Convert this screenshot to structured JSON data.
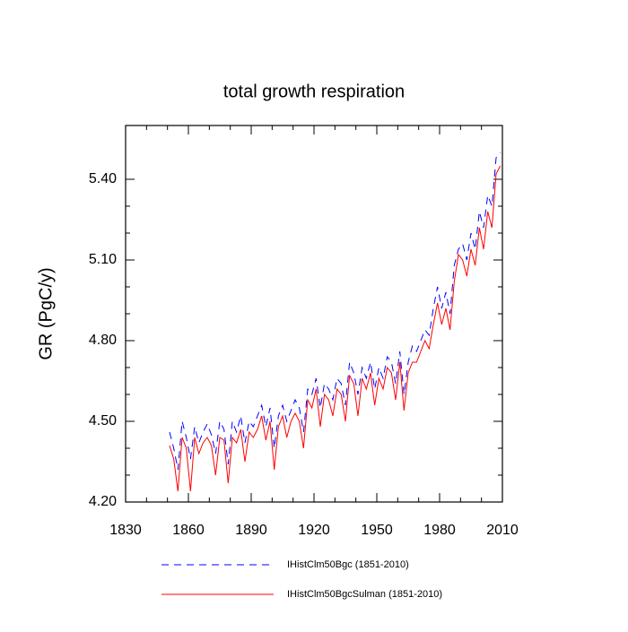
{
  "chart_data": {
    "type": "line",
    "title": "total growth respiration",
    "ylabel": "GR  (PgC/y)",
    "x": [
      1851,
      1853,
      1855,
      1857,
      1859,
      1861,
      1863,
      1865,
      1867,
      1869,
      1871,
      1873,
      1875,
      1877,
      1879,
      1881,
      1883,
      1885,
      1887,
      1889,
      1891,
      1893,
      1895,
      1897,
      1899,
      1901,
      1903,
      1905,
      1907,
      1909,
      1911,
      1913,
      1915,
      1917,
      1919,
      1921,
      1923,
      1925,
      1927,
      1929,
      1931,
      1933,
      1935,
      1937,
      1939,
      1941,
      1943,
      1945,
      1947,
      1949,
      1951,
      1953,
      1955,
      1957,
      1959,
      1961,
      1963,
      1965,
      1967,
      1969,
      1971,
      1973,
      1975,
      1977,
      1979,
      1981,
      1983,
      1985,
      1987,
      1989,
      1991,
      1993,
      1995,
      1997,
      1999,
      2001,
      2003,
      2005,
      2007,
      2009
    ],
    "series": [
      {
        "name": "IHistClm50Bgc (1851-2010)",
        "color": "#0000ff",
        "line_style": "dashed",
        "values": [
          4.46,
          4.4,
          4.32,
          4.5,
          4.44,
          4.36,
          4.48,
          4.42,
          4.46,
          4.49,
          4.45,
          4.38,
          4.5,
          4.47,
          4.34,
          4.5,
          4.46,
          4.52,
          4.42,
          4.5,
          4.48,
          4.52,
          4.56,
          4.48,
          4.55,
          4.4,
          4.52,
          4.56,
          4.5,
          4.54,
          4.58,
          4.55,
          4.46,
          4.62,
          4.6,
          4.66,
          4.55,
          4.64,
          4.62,
          4.58,
          4.66,
          4.64,
          4.56,
          4.72,
          4.68,
          4.6,
          4.7,
          4.66,
          4.72,
          4.62,
          4.7,
          4.66,
          4.74,
          4.72,
          4.64,
          4.76,
          4.6,
          4.72,
          4.78,
          4.76,
          4.8,
          4.84,
          4.82,
          4.92,
          5.0,
          4.92,
          4.98,
          4.9,
          5.08,
          5.14,
          5.16,
          5.1,
          5.2,
          5.14,
          5.28,
          5.22,
          5.34,
          5.3,
          5.48,
          5.5
        ]
      },
      {
        "name": "IHistClm50BgcSulman (1851-2010)",
        "color": "#ff0000",
        "line_style": "solid",
        "values": [
          4.41,
          4.36,
          4.24,
          4.44,
          4.4,
          4.24,
          4.44,
          4.38,
          4.42,
          4.44,
          4.41,
          4.3,
          4.44,
          4.43,
          4.27,
          4.44,
          4.42,
          4.47,
          4.35,
          4.46,
          4.44,
          4.47,
          4.52,
          4.43,
          4.5,
          4.32,
          4.48,
          4.52,
          4.44,
          4.5,
          4.53,
          4.5,
          4.4,
          4.58,
          4.55,
          4.62,
          4.48,
          4.6,
          4.58,
          4.52,
          4.62,
          4.6,
          4.5,
          4.67,
          4.64,
          4.52,
          4.66,
          4.62,
          4.68,
          4.56,
          4.66,
          4.62,
          4.7,
          4.68,
          4.58,
          4.72,
          4.54,
          4.68,
          4.72,
          4.72,
          4.76,
          4.8,
          4.77,
          4.86,
          4.94,
          4.86,
          4.92,
          4.84,
          5.02,
          5.12,
          5.1,
          5.04,
          5.14,
          5.08,
          5.22,
          5.14,
          5.28,
          5.22,
          5.42,
          5.45
        ]
      }
    ],
    "xlim": [
      1830,
      2010
    ],
    "xticks": [
      1830,
      1860,
      1890,
      1920,
      1950,
      1980,
      2010
    ],
    "ylim": [
      4.2,
      5.6
    ],
    "yticks": [
      {
        "value": 4.2,
        "label": "4.20"
      },
      {
        "value": 4.5,
        "label": "4.50"
      },
      {
        "value": 4.8,
        "label": "4.80"
      },
      {
        "value": 5.1,
        "label": "5.10"
      },
      {
        "value": 5.4,
        "label": "5.40"
      }
    ],
    "grid": false
  }
}
